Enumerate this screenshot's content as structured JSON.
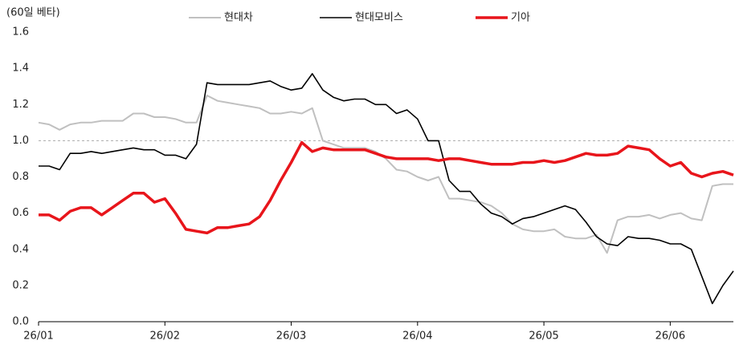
{
  "chart_data": {
    "type": "line",
    "y_label": "(60일 베타)",
    "categories": [
      "26/01",
      null,
      null,
      null,
      null,
      null,
      null,
      null,
      null,
      null,
      null,
      null,
      "26/02",
      null,
      null,
      null,
      null,
      null,
      null,
      null,
      null,
      null,
      null,
      null,
      "26/03",
      null,
      null,
      null,
      null,
      null,
      null,
      null,
      null,
      null,
      null,
      null,
      "26/04",
      null,
      null,
      null,
      null,
      null,
      null,
      null,
      null,
      null,
      null,
      null,
      "26/05",
      null,
      null,
      null,
      null,
      null,
      null,
      null,
      null,
      null,
      null,
      null,
      "26/06",
      null,
      null,
      null,
      null,
      null,
      null
    ],
    "series": [
      {
        "name": "현대차",
        "color": "#c0c0c0",
        "values": [
          1.1,
          1.09,
          1.06,
          1.09,
          1.1,
          1.1,
          1.11,
          1.11,
          1.11,
          1.15,
          1.15,
          1.13,
          1.13,
          1.12,
          1.1,
          1.1,
          1.25,
          1.22,
          1.21,
          1.2,
          1.19,
          1.18,
          1.15,
          1.15,
          1.16,
          1.15,
          1.18,
          1.0,
          0.98,
          0.96,
          0.96,
          0.96,
          0.94,
          0.9,
          0.84,
          0.83,
          0.8,
          0.78,
          0.8,
          0.68,
          0.68,
          0.67,
          0.66,
          0.64,
          0.6,
          0.54,
          0.51,
          0.5,
          0.5,
          0.51,
          0.47,
          0.46,
          0.46,
          0.48,
          0.38,
          0.56,
          0.58,
          0.58,
          0.59,
          0.57,
          0.59,
          0.6,
          0.57,
          0.56,
          0.75,
          0.76,
          0.76
        ]
      },
      {
        "name": "현대모비스",
        "color": "#000000",
        "values": [
          0.86,
          0.86,
          0.84,
          0.93,
          0.93,
          0.94,
          0.93,
          0.94,
          0.95,
          0.96,
          0.95,
          0.95,
          0.92,
          0.92,
          0.9,
          0.98,
          1.32,
          1.31,
          1.31,
          1.31,
          1.31,
          1.32,
          1.33,
          1.3,
          1.28,
          1.29,
          1.37,
          1.28,
          1.24,
          1.22,
          1.23,
          1.23,
          1.2,
          1.2,
          1.15,
          1.17,
          1.12,
          1.0,
          1.0,
          0.78,
          0.72,
          0.72,
          0.65,
          0.6,
          0.58,
          0.54,
          0.57,
          0.58,
          0.6,
          0.62,
          0.64,
          0.62,
          0.55,
          0.47,
          0.43,
          0.42,
          0.47,
          0.46,
          0.46,
          0.45,
          0.43,
          0.43,
          0.4,
          0.25,
          0.1,
          0.2,
          0.28
        ]
      },
      {
        "name": "기아",
        "color": "#e8151b",
        "values": [
          0.59,
          0.59,
          0.56,
          0.61,
          0.63,
          0.63,
          0.59,
          0.63,
          0.67,
          0.71,
          0.71,
          0.66,
          0.68,
          0.6,
          0.51,
          0.5,
          0.49,
          0.52,
          0.52,
          0.53,
          0.54,
          0.58,
          0.67,
          0.78,
          0.88,
          0.99,
          0.94,
          0.96,
          0.95,
          0.95,
          0.95,
          0.95,
          0.93,
          0.91,
          0.9,
          0.9,
          0.9,
          0.9,
          0.89,
          0.9,
          0.9,
          0.89,
          0.88,
          0.87,
          0.87,
          0.87,
          0.88,
          0.88,
          0.89,
          0.88,
          0.89,
          0.91,
          0.93,
          0.92,
          0.92,
          0.93,
          0.97,
          0.96,
          0.95,
          0.9,
          0.86,
          0.88,
          0.82,
          0.8,
          0.82,
          0.83,
          0.81
        ]
      }
    ],
    "ylim": [
      0,
      1.6
    ],
    "yticks": [
      {
        "value": 0,
        "label": "0.0"
      },
      0.2,
      0.4,
      0.6,
      0.8,
      {
        "value": 1,
        "label": "1.0"
      },
      1.2,
      1.4,
      1.6
    ],
    "reference_line": 1,
    "legend": "top"
  }
}
